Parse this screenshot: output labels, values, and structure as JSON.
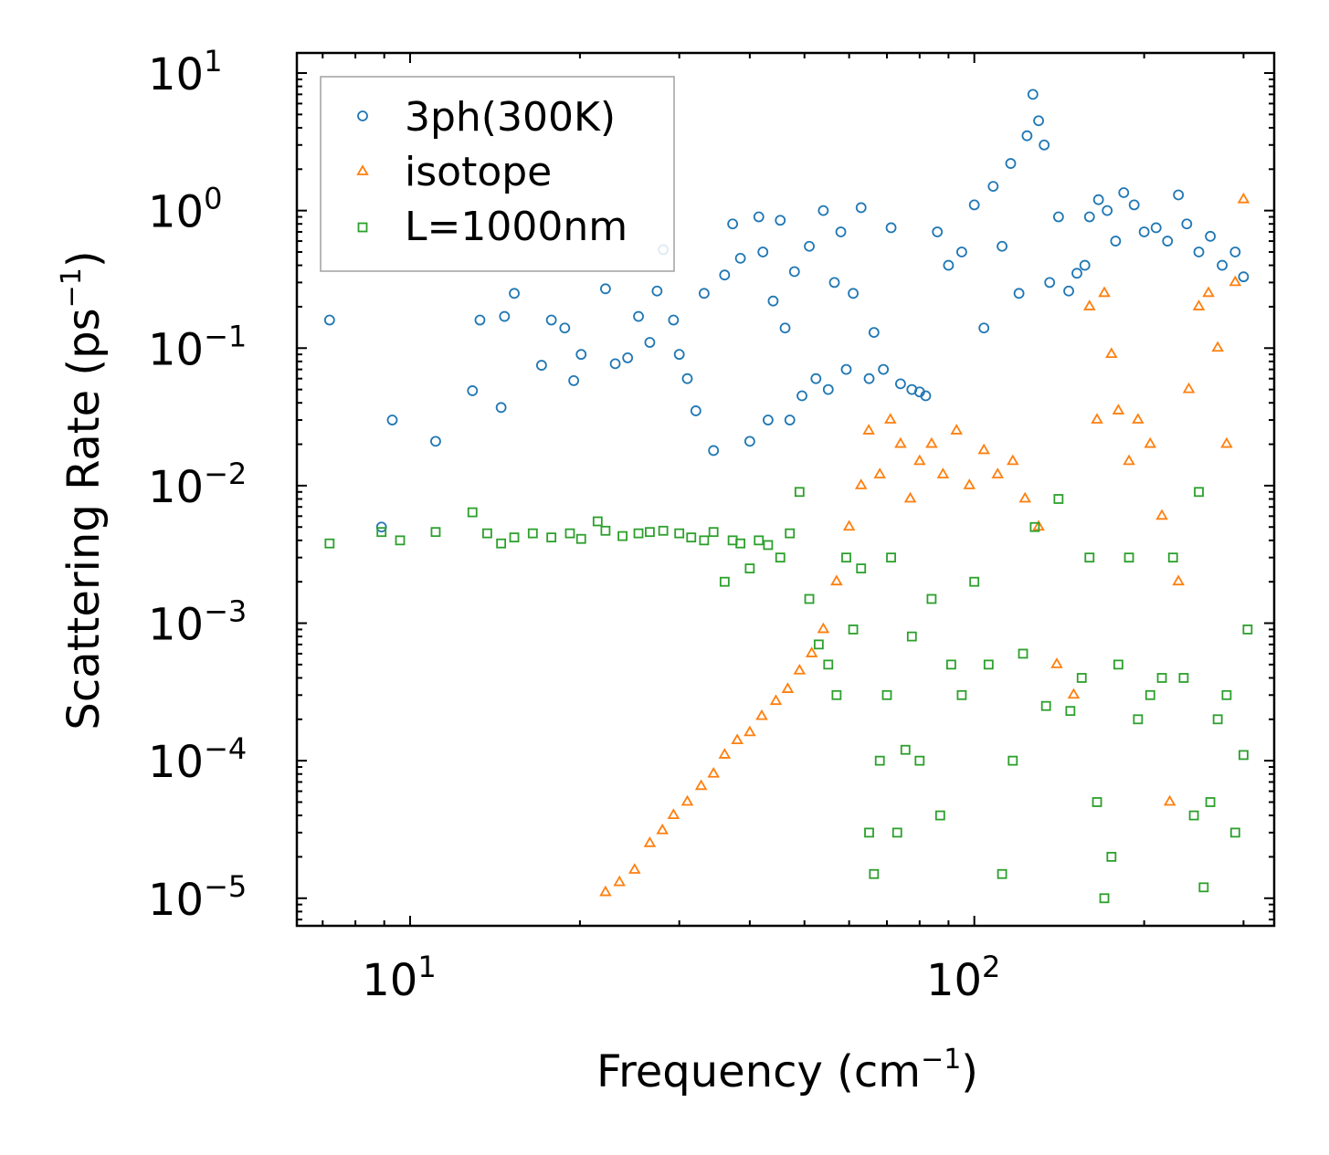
{
  "chart_data": {
    "type": "scatter",
    "title": "",
    "xlabel": "Frequency (cm",
    "xlabel_sup": "−1",
    "xlabel_close": ")",
    "ylabel": "Scattering Rate (ps",
    "ylabel_sup": "−1",
    "ylabel_close": ")",
    "xscale": "log",
    "yscale": "log",
    "xlim": [
      6.3,
      340
    ],
    "ylim": [
      6.3e-06,
      14
    ],
    "x_ticks": [
      {
        "value": 10,
        "base": "10",
        "exp": "1"
      },
      {
        "value": 100,
        "base": "10",
        "exp": "2"
      }
    ],
    "y_ticks": [
      {
        "value": 10,
        "base": "10",
        "exp": "1"
      },
      {
        "value": 1,
        "base": "10",
        "exp": "0"
      },
      {
        "value": 0.1,
        "base": "10",
        "exp": "−1"
      },
      {
        "value": 0.01,
        "base": "10",
        "exp": "−2"
      },
      {
        "value": 0.001,
        "base": "10",
        "exp": "−3"
      },
      {
        "value": 0.0001,
        "base": "10",
        "exp": "−4"
      },
      {
        "value": 1e-05,
        "base": "10",
        "exp": "−5"
      }
    ],
    "legend_position": "top-left",
    "series": [
      {
        "name": "3ph(300K)",
        "marker": "circle",
        "color": "#1f77b4",
        "points": [
          [
            7.2,
            0.16
          ],
          [
            8.9,
            0.005
          ],
          [
            9.3,
            0.03
          ],
          [
            11.1,
            0.021
          ],
          [
            12.9,
            0.049
          ],
          [
            13.3,
            0.16
          ],
          [
            14.5,
            0.037
          ],
          [
            14.7,
            0.17
          ],
          [
            15.3,
            0.25
          ],
          [
            17.1,
            0.075
          ],
          [
            17.8,
            0.16
          ],
          [
            18.8,
            0.14
          ],
          [
            19.5,
            0.058
          ],
          [
            20.1,
            0.09
          ],
          [
            22.2,
            0.27
          ],
          [
            23.1,
            0.077
          ],
          [
            24.3,
            0.085
          ],
          [
            25.4,
            0.17
          ],
          [
            26.6,
            0.11
          ],
          [
            27.4,
            0.26
          ],
          [
            28.1,
            0.52
          ],
          [
            29.3,
            0.16
          ],
          [
            30.0,
            0.09
          ],
          [
            31.0,
            0.06
          ],
          [
            32.1,
            0.035
          ],
          [
            33.2,
            0.25
          ],
          [
            34.5,
            0.018
          ],
          [
            36.1,
            0.34
          ],
          [
            37.3,
            0.8
          ],
          [
            38.5,
            0.45
          ],
          [
            40.0,
            0.021
          ],
          [
            41.5,
            0.9
          ],
          [
            42.2,
            0.5
          ],
          [
            43.1,
            0.03
          ],
          [
            44.0,
            0.22
          ],
          [
            45.3,
            0.85
          ],
          [
            46.2,
            0.14
          ],
          [
            47.1,
            0.03
          ],
          [
            48.0,
            0.36
          ],
          [
            49.5,
            0.045
          ],
          [
            51.0,
            0.55
          ],
          [
            52.4,
            0.06
          ],
          [
            54.0,
            1.0
          ],
          [
            55.1,
            0.05
          ],
          [
            56.5,
            0.3
          ],
          [
            58.0,
            0.7
          ],
          [
            59.3,
            0.07
          ],
          [
            61.0,
            0.25
          ],
          [
            63.0,
            1.05
          ],
          [
            65.1,
            0.06
          ],
          [
            66.4,
            0.13
          ],
          [
            69.0,
            0.07
          ],
          [
            71.2,
            0.75
          ],
          [
            74.0,
            0.055
          ],
          [
            77.5,
            0.05
          ],
          [
            80.0,
            0.048
          ],
          [
            82.0,
            0.045
          ],
          [
            86.0,
            0.7
          ],
          [
            90.0,
            0.4
          ],
          [
            95.0,
            0.5
          ],
          [
            100.0,
            1.1
          ],
          [
            104.0,
            0.14
          ],
          [
            108.0,
            1.5
          ],
          [
            112.0,
            0.55
          ],
          [
            116.0,
            2.2
          ],
          [
            120.0,
            0.25
          ],
          [
            124.0,
            3.5
          ],
          [
            127.0,
            7.0
          ],
          [
            130.0,
            4.5
          ],
          [
            133.0,
            3.0
          ],
          [
            136.0,
            0.3
          ],
          [
            141.0,
            0.9
          ],
          [
            147.0,
            0.26
          ],
          [
            152.0,
            0.35
          ],
          [
            157.0,
            0.4
          ],
          [
            160.0,
            0.9
          ],
          [
            166.0,
            1.2
          ],
          [
            172.0,
            1.0
          ],
          [
            178.0,
            0.6
          ],
          [
            184.0,
            1.35
          ],
          [
            192.0,
            1.1
          ],
          [
            200.0,
            0.7
          ],
          [
            210.0,
            0.75
          ],
          [
            220.0,
            0.6
          ],
          [
            230.0,
            1.3
          ],
          [
            238.0,
            0.8
          ],
          [
            250.0,
            0.5
          ],
          [
            262.0,
            0.65
          ],
          [
            275.0,
            0.4
          ],
          [
            290.0,
            0.5
          ],
          [
            300.0,
            0.33
          ]
        ]
      },
      {
        "name": "isotope",
        "marker": "triangle",
        "color": "#ff7f0e",
        "points": [
          [
            22.2,
            1.1e-05
          ],
          [
            23.5,
            1.3e-05
          ],
          [
            25.0,
            1.6e-05
          ],
          [
            26.6,
            2.5e-05
          ],
          [
            28.0,
            3.1e-05
          ],
          [
            29.3,
            4e-05
          ],
          [
            31.0,
            5e-05
          ],
          [
            32.8,
            6.5e-05
          ],
          [
            34.5,
            8e-05
          ],
          [
            36.1,
            0.00011
          ],
          [
            38.0,
            0.00014
          ],
          [
            40.0,
            0.00016
          ],
          [
            42.0,
            0.00021
          ],
          [
            44.5,
            0.00027
          ],
          [
            46.7,
            0.00033
          ],
          [
            49.0,
            0.00045
          ],
          [
            51.5,
            0.0006
          ],
          [
            54.0,
            0.0009
          ],
          [
            57.0,
            0.002
          ],
          [
            60.0,
            0.005
          ],
          [
            63.0,
            0.01
          ],
          [
            65.0,
            0.025
          ],
          [
            68.0,
            0.012
          ],
          [
            71.0,
            0.03
          ],
          [
            74.0,
            0.02
          ],
          [
            77.0,
            0.008
          ],
          [
            80.0,
            0.015
          ],
          [
            84.0,
            0.02
          ],
          [
            88.0,
            0.012
          ],
          [
            93.0,
            0.025
          ],
          [
            98.0,
            0.01
          ],
          [
            104.0,
            0.018
          ],
          [
            110.0,
            0.012
          ],
          [
            117.0,
            0.015
          ],
          [
            123.0,
            0.008
          ],
          [
            130.0,
            0.005
          ],
          [
            140.0,
            0.0005
          ],
          [
            150.0,
            0.0003
          ],
          [
            160.0,
            0.2
          ],
          [
            165.0,
            0.03
          ],
          [
            170.0,
            0.25
          ],
          [
            175.0,
            0.09
          ],
          [
            180.0,
            0.035
          ],
          [
            188.0,
            0.015
          ],
          [
            195.0,
            0.03
          ],
          [
            205.0,
            0.02
          ],
          [
            215.0,
            0.006
          ],
          [
            222.0,
            5e-05
          ],
          [
            230.0,
            0.002
          ],
          [
            240.0,
            0.05
          ],
          [
            250.0,
            0.2
          ],
          [
            260.0,
            0.25
          ],
          [
            270.0,
            0.1
          ],
          [
            280.0,
            0.02
          ],
          [
            290.0,
            0.3
          ],
          [
            300.0,
            1.2
          ]
        ]
      },
      {
        "name": "L=1000nm",
        "marker": "square",
        "color": "#2ca02c",
        "points": [
          [
            7.2,
            0.0038
          ],
          [
            8.9,
            0.0046
          ],
          [
            9.6,
            0.004
          ],
          [
            11.1,
            0.0046
          ],
          [
            12.9,
            0.0064
          ],
          [
            13.7,
            0.0045
          ],
          [
            14.5,
            0.0038
          ],
          [
            15.3,
            0.0042
          ],
          [
            16.5,
            0.0045
          ],
          [
            17.8,
            0.0042
          ],
          [
            19.2,
            0.0045
          ],
          [
            20.1,
            0.0041
          ],
          [
            21.5,
            0.0055
          ],
          [
            22.2,
            0.0047
          ],
          [
            23.8,
            0.0043
          ],
          [
            25.4,
            0.0045
          ],
          [
            26.6,
            0.0046
          ],
          [
            28.1,
            0.0047
          ],
          [
            30.0,
            0.0045
          ],
          [
            31.5,
            0.0042
          ],
          [
            33.2,
            0.004
          ],
          [
            34.5,
            0.0046
          ],
          [
            36.1,
            0.002
          ],
          [
            37.3,
            0.004
          ],
          [
            38.5,
            0.0038
          ],
          [
            40.0,
            0.0025
          ],
          [
            41.5,
            0.004
          ],
          [
            43.1,
            0.0037
          ],
          [
            45.3,
            0.003
          ],
          [
            47.1,
            0.0045
          ],
          [
            49.0,
            0.009
          ],
          [
            51.0,
            0.0015
          ],
          [
            53.0,
            0.0007
          ],
          [
            55.1,
            0.0005
          ],
          [
            57.0,
            0.0003
          ],
          [
            59.3,
            0.003
          ],
          [
            61.0,
            0.0009
          ],
          [
            63.0,
            0.0025
          ],
          [
            65.1,
            3e-05
          ],
          [
            66.4,
            1.5e-05
          ],
          [
            68.0,
            0.0001
          ],
          [
            70.0,
            0.0003
          ],
          [
            71.2,
            0.003
          ],
          [
            73.0,
            3e-05
          ],
          [
            75.5,
            0.00012
          ],
          [
            77.5,
            0.0008
          ],
          [
            80.0,
            0.0001
          ],
          [
            84.0,
            0.0015
          ],
          [
            87.0,
            4e-05
          ],
          [
            91.0,
            0.0005
          ],
          [
            95.0,
            0.0003
          ],
          [
            100.0,
            0.002
          ],
          [
            106.0,
            0.0005
          ],
          [
            112.0,
            1.5e-05
          ],
          [
            117.0,
            0.0001
          ],
          [
            122.0,
            0.0006
          ],
          [
            128.0,
            0.005
          ],
          [
            134.0,
            0.00025
          ],
          [
            141.0,
            0.008
          ],
          [
            148.0,
            0.00023
          ],
          [
            155.0,
            0.0004
          ],
          [
            160.0,
            0.003
          ],
          [
            165.0,
            5e-05
          ],
          [
            170.0,
            1e-05
          ],
          [
            175.0,
            2e-05
          ],
          [
            180.0,
            0.0005
          ],
          [
            188.0,
            0.003
          ],
          [
            195.0,
            0.0002
          ],
          [
            205.0,
            0.0003
          ],
          [
            215.0,
            0.0004
          ],
          [
            225.0,
            0.003
          ],
          [
            235.0,
            0.0004
          ],
          [
            245.0,
            4e-05
          ],
          [
            250.0,
            0.009
          ],
          [
            255.0,
            1.2e-05
          ],
          [
            262.0,
            5e-05
          ],
          [
            270.0,
            0.0002
          ],
          [
            280.0,
            0.0003
          ],
          [
            290.0,
            3e-05
          ],
          [
            300.0,
            0.00011
          ],
          [
            305.0,
            0.0009
          ]
        ]
      }
    ]
  }
}
